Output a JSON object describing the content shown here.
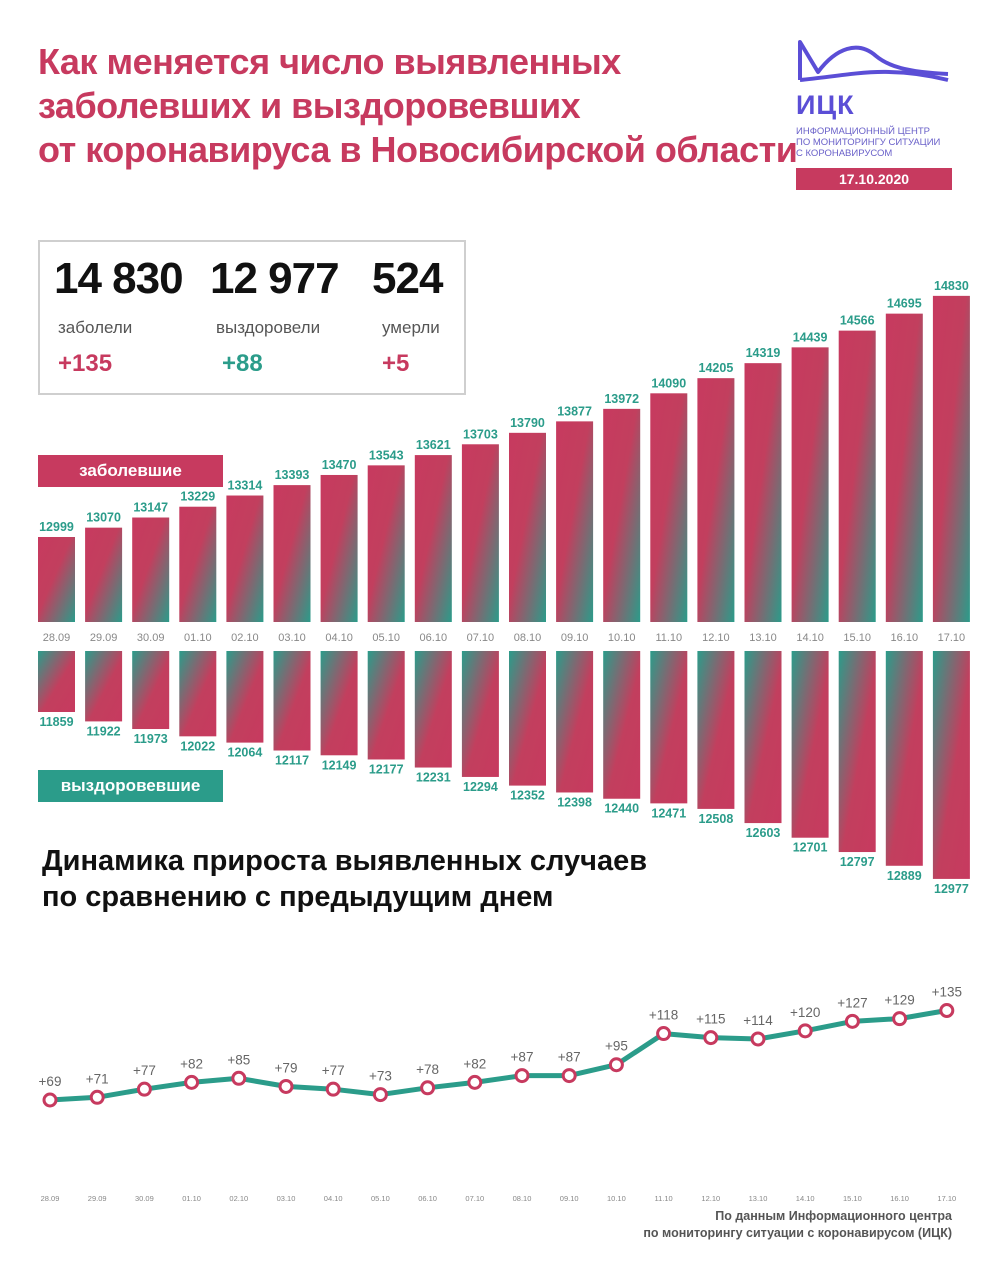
{
  "header": {
    "title_lines": [
      "Как меняется число выявленных",
      "заболевших и выздоровевших",
      "от коронавируса в Новосибирской области"
    ]
  },
  "logo": {
    "abbr": "ИЦК",
    "subtitle_lines": [
      "Информационный центр",
      "по мониторингу ситуации",
      "с коронавирусом"
    ],
    "date": "17.10.2020",
    "color": "#5b4ed6"
  },
  "stats": [
    {
      "value": "14 830",
      "label": "заболели",
      "delta": "+135",
      "delta_color": "#c73a5f"
    },
    {
      "value": "12 977",
      "label": "выздоровели",
      "delta": "+88",
      "delta_color": "#2b9c8a"
    },
    {
      "value": "524",
      "label": "умерли",
      "delta": "+5",
      "delta_color": "#c73a5f"
    }
  ],
  "colors": {
    "red": "#c73a5f",
    "teal": "#2b9c8a",
    "date_gray": "#888888"
  },
  "chart_data": [
    {
      "type": "bar",
      "title": "заболевшие / выздоровевшие",
      "categories": [
        "28.09",
        "29.09",
        "30.09",
        "01.10",
        "02.10",
        "03.10",
        "04.10",
        "05.10",
        "06.10",
        "07.10",
        "08.10",
        "09.10",
        "10.10",
        "11.10",
        "12.10",
        "13.10",
        "14.10",
        "15.10",
        "16.10",
        "17.10"
      ],
      "series": [
        {
          "name": "заболевшие",
          "values": [
            12999,
            13070,
            13147,
            13229,
            13314,
            13393,
            13470,
            13543,
            13621,
            13703,
            13790,
            13877,
            13972,
            14090,
            14205,
            14319,
            14439,
            14566,
            14695,
            14830
          ]
        },
        {
          "name": "выздоровевшие",
          "values": [
            11859,
            11922,
            11973,
            12022,
            12064,
            12117,
            12149,
            12177,
            12231,
            12294,
            12352,
            12398,
            12440,
            12471,
            12508,
            12603,
            12701,
            12797,
            12889,
            12977
          ]
        }
      ]
    },
    {
      "type": "line",
      "title": "Динамика прироста выявленных случаев по сравнению с предыдущим днем",
      "categories": [
        "28.09",
        "29.09",
        "30.09",
        "01.10",
        "02.10",
        "03.10",
        "04.10",
        "05.10",
        "06.10",
        "07.10",
        "08.10",
        "09.10",
        "10.10",
        "11.10",
        "12.10",
        "13.10",
        "14.10",
        "15.10",
        "16.10",
        "17.10"
      ],
      "values": [
        69,
        71,
        77,
        82,
        85,
        79,
        77,
        73,
        78,
        82,
        87,
        87,
        95,
        118,
        115,
        114,
        120,
        127,
        129,
        135
      ],
      "labels": [
        "+69",
        "+71",
        "+77",
        "+82",
        "+85",
        "+79",
        "+77",
        "+73",
        "+78",
        "+82",
        "+87",
        "+87",
        "+95",
        "+118",
        "+115",
        "+114",
        "+120",
        "+127",
        "+129",
        "+135"
      ]
    }
  ],
  "legend": {
    "sick": "заболевшие",
    "recovered": "выздоровевшие"
  },
  "section2": {
    "title_lines": [
      "Динамика прироста выявленных случаев",
      "по сравнению с предыдущим днем"
    ]
  },
  "footer": {
    "lines": [
      "По данным Информационного центра",
      "по мониторингу ситуации с коронавирусом (ИЦК)"
    ]
  }
}
